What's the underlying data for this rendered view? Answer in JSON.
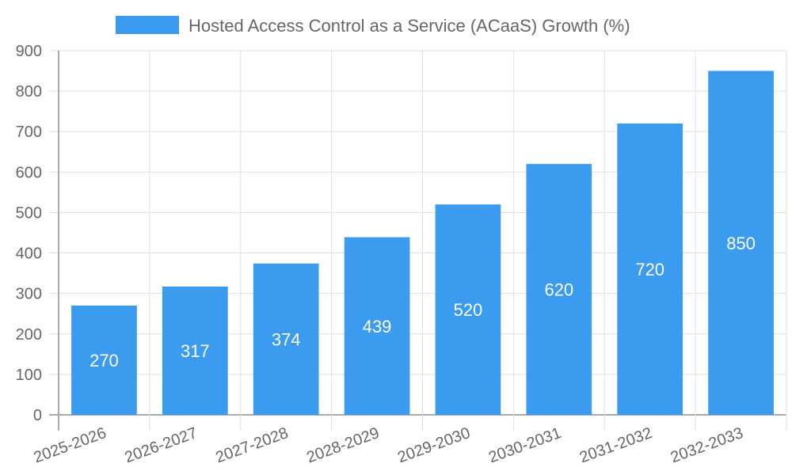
{
  "chart_data": {
    "type": "bar",
    "title": "",
    "legend": [
      {
        "label": "Hosted Access Control as a Service (ACaaS) Growth (%)",
        "color": "#3a9bef"
      }
    ],
    "legend_position": "top",
    "categories": [
      "2025-2026",
      "2026-2027",
      "2027-2028",
      "2028-2029",
      "2029-2030",
      "2030-2031",
      "2031-2032",
      "2032-2033"
    ],
    "series": [
      {
        "name": "Hosted Access Control as a Service (ACaaS) Growth (%)",
        "values": [
          270,
          317,
          374,
          439,
          520,
          620,
          720,
          850
        ],
        "color": "#3a9bef"
      }
    ],
    "xlabel": "",
    "ylabel": "",
    "ylim": [
      0,
      900
    ],
    "yticks": [
      0,
      100,
      200,
      300,
      400,
      500,
      600,
      700,
      800,
      900
    ],
    "grid": true,
    "data_labels": true
  }
}
